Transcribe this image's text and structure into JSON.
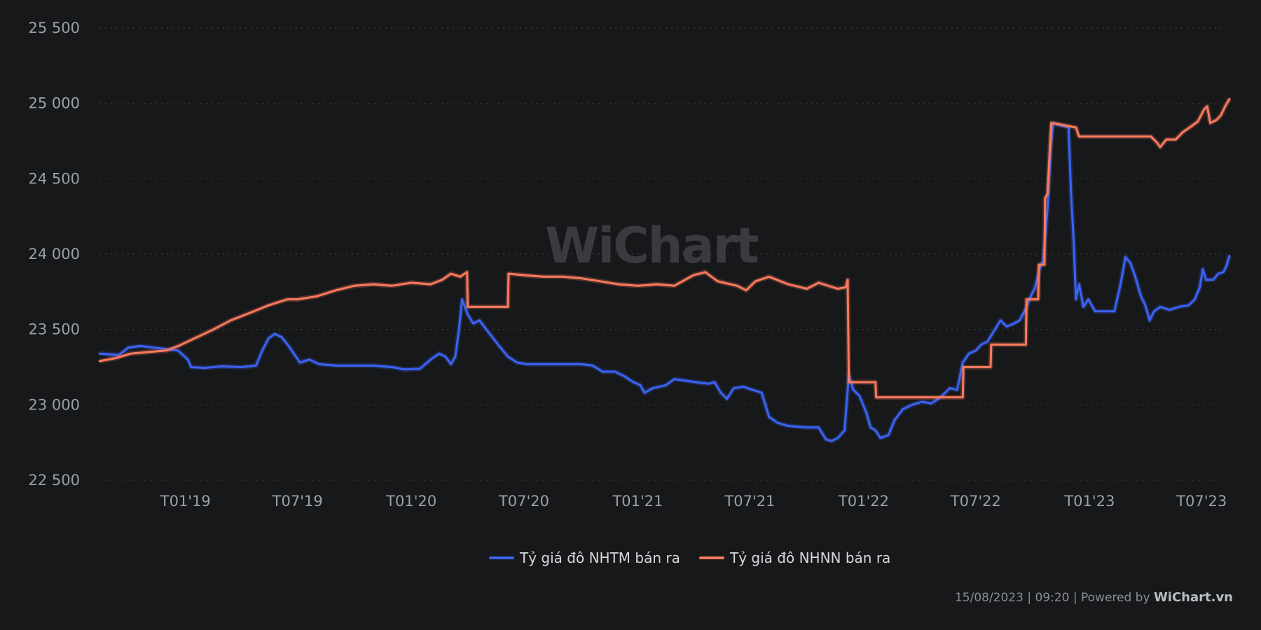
{
  "chart_data": {
    "type": "line",
    "title": "",
    "xlabel": "",
    "ylabel": "",
    "ylim": [
      22500,
      25500
    ],
    "yticks": [
      "25 500",
      "25 000",
      "24 500",
      "24 000",
      "23 500",
      "23 000",
      "22 500"
    ],
    "ytick_values": [
      25500,
      25000,
      24500,
      24000,
      23500,
      23000,
      22500
    ],
    "xticks": [
      "T01'19",
      "T07'19",
      "T01'20",
      "T07'20",
      "T01'21",
      "T07'21",
      "T01'22",
      "T07'22",
      "T01'23",
      "T07'23"
    ],
    "xtick_values": [
      "2019-01-01",
      "2019-07-01",
      "2020-01-01",
      "2020-07-01",
      "2021-01-01",
      "2021-07-01",
      "2022-01-01",
      "2022-07-01",
      "2023-01-01",
      "2023-07-01"
    ],
    "xlim": [
      "2018-08-15",
      "2023-08-15"
    ],
    "grid": true,
    "legend_position": "bottom-center",
    "series": [
      {
        "name": "Tỷ giá đô NHTM bán ra",
        "color": "#3b63f5",
        "points": [
          [
            "2018-08-15",
            23340
          ],
          [
            "2018-09-15",
            23330
          ],
          [
            "2018-10-01",
            23380
          ],
          [
            "2018-10-20",
            23390
          ],
          [
            "2018-11-10",
            23380
          ],
          [
            "2018-12-01",
            23370
          ],
          [
            "2018-12-20",
            23360
          ],
          [
            "2019-01-05",
            23300
          ],
          [
            "2019-01-10",
            23250
          ],
          [
            "2019-02-01",
            23245
          ],
          [
            "2019-03-01",
            23255
          ],
          [
            "2019-04-01",
            23250
          ],
          [
            "2019-04-25",
            23260
          ],
          [
            "2019-05-05",
            23360
          ],
          [
            "2019-05-15",
            23440
          ],
          [
            "2019-05-25",
            23470
          ],
          [
            "2019-06-05",
            23450
          ],
          [
            "2019-06-15",
            23400
          ],
          [
            "2019-06-25",
            23340
          ],
          [
            "2019-07-05",
            23280
          ],
          [
            "2019-07-20",
            23300
          ],
          [
            "2019-08-05",
            23270
          ],
          [
            "2019-09-01",
            23260
          ],
          [
            "2019-10-01",
            23260
          ],
          [
            "2019-11-01",
            23260
          ],
          [
            "2019-12-01",
            23250
          ],
          [
            "2019-12-20",
            23235
          ],
          [
            "2020-01-15",
            23240
          ],
          [
            "2020-02-01",
            23300
          ],
          [
            "2020-02-15",
            23340
          ],
          [
            "2020-02-25",
            23320
          ],
          [
            "2020-03-05",
            23270
          ],
          [
            "2020-03-12",
            23320
          ],
          [
            "2020-03-18",
            23500
          ],
          [
            "2020-03-23",
            23700
          ],
          [
            "2020-04-01",
            23600
          ],
          [
            "2020-04-10",
            23540
          ],
          [
            "2020-04-20",
            23560
          ],
          [
            "2020-05-05",
            23480
          ],
          [
            "2020-05-20",
            23400
          ],
          [
            "2020-06-05",
            23320
          ],
          [
            "2020-06-20",
            23280
          ],
          [
            "2020-07-05",
            23270
          ],
          [
            "2020-08-01",
            23270
          ],
          [
            "2020-09-01",
            23270
          ],
          [
            "2020-10-01",
            23270
          ],
          [
            "2020-10-20",
            23260
          ],
          [
            "2020-11-05",
            23220
          ],
          [
            "2020-11-25",
            23220
          ],
          [
            "2020-12-10",
            23190
          ],
          [
            "2020-12-25",
            23150
          ],
          [
            "2021-01-05",
            23130
          ],
          [
            "2021-01-12",
            23080
          ],
          [
            "2021-01-25",
            23110
          ],
          [
            "2021-02-15",
            23130
          ],
          [
            "2021-03-01",
            23170
          ],
          [
            "2021-03-20",
            23160
          ],
          [
            "2021-04-05",
            23150
          ],
          [
            "2021-04-25",
            23140
          ],
          [
            "2021-05-05",
            23150
          ],
          [
            "2021-05-15",
            23080
          ],
          [
            "2021-05-25",
            23040
          ],
          [
            "2021-06-05",
            23110
          ],
          [
            "2021-06-20",
            23120
          ],
          [
            "2021-07-05",
            23100
          ],
          [
            "2021-07-20",
            23080
          ],
          [
            "2021-08-01",
            22920
          ],
          [
            "2021-08-15",
            22880
          ],
          [
            "2021-09-01",
            22860
          ],
          [
            "2021-10-01",
            22850
          ],
          [
            "2021-10-20",
            22850
          ],
          [
            "2021-11-01",
            22770
          ],
          [
            "2021-11-10",
            22760
          ],
          [
            "2021-11-20",
            22780
          ],
          [
            "2021-12-01",
            22830
          ],
          [
            "2021-12-08",
            23200
          ],
          [
            "2021-12-15",
            23100
          ],
          [
            "2021-12-25",
            23060
          ],
          [
            "2022-01-05",
            22950
          ],
          [
            "2022-01-12",
            22850
          ],
          [
            "2022-01-20",
            22830
          ],
          [
            "2022-01-28",
            22780
          ],
          [
            "2022-02-10",
            22800
          ],
          [
            "2022-02-20",
            22900
          ],
          [
            "2022-03-05",
            22970
          ],
          [
            "2022-03-20",
            23000
          ],
          [
            "2022-04-05",
            23020
          ],
          [
            "2022-04-20",
            23010
          ],
          [
            "2022-05-05",
            23050
          ],
          [
            "2022-05-20",
            23110
          ],
          [
            "2022-06-01",
            23100
          ],
          [
            "2022-06-10",
            23280
          ],
          [
            "2022-06-20",
            23340
          ],
          [
            "2022-07-01",
            23360
          ],
          [
            "2022-07-10",
            23400
          ],
          [
            "2022-07-20",
            23420
          ],
          [
            "2022-08-01",
            23500
          ],
          [
            "2022-08-10",
            23560
          ],
          [
            "2022-08-20",
            23520
          ],
          [
            "2022-09-01",
            23540
          ],
          [
            "2022-09-10",
            23560
          ],
          [
            "2022-09-20",
            23640
          ],
          [
            "2022-09-28",
            23720
          ],
          [
            "2022-10-05",
            23780
          ],
          [
            "2022-10-12",
            23900
          ],
          [
            "2022-10-18",
            23960
          ],
          [
            "2022-10-25",
            24300
          ],
          [
            "2022-10-30",
            24700
          ],
          [
            "2022-11-03",
            24870
          ],
          [
            "2022-11-10",
            24860
          ],
          [
            "2022-11-20",
            24850
          ],
          [
            "2022-11-28",
            24840
          ],
          [
            "2022-12-02",
            24400
          ],
          [
            "2022-12-06",
            24100
          ],
          [
            "2022-12-10",
            23700
          ],
          [
            "2022-12-15",
            23800
          ],
          [
            "2022-12-22",
            23650
          ],
          [
            "2022-12-30",
            23700
          ],
          [
            "2023-01-10",
            23620
          ],
          [
            "2023-01-25",
            23620
          ],
          [
            "2023-02-10",
            23620
          ],
          [
            "2023-02-20",
            23800
          ],
          [
            "2023-02-28",
            23980
          ],
          [
            "2023-03-08",
            23940
          ],
          [
            "2023-03-15",
            23860
          ],
          [
            "2023-03-25",
            23720
          ],
          [
            "2023-04-01",
            23660
          ],
          [
            "2023-04-08",
            23560
          ],
          [
            "2023-04-15",
            23620
          ],
          [
            "2023-04-25",
            23650
          ],
          [
            "2023-05-10",
            23630
          ],
          [
            "2023-05-25",
            23650
          ],
          [
            "2023-06-10",
            23660
          ],
          [
            "2023-06-20",
            23700
          ],
          [
            "2023-06-28",
            23780
          ],
          [
            "2023-07-03",
            23900
          ],
          [
            "2023-07-08",
            23830
          ],
          [
            "2023-07-20",
            23830
          ],
          [
            "2023-07-28",
            23870
          ],
          [
            "2023-08-05",
            23880
          ],
          [
            "2023-08-10",
            23920
          ],
          [
            "2023-08-15",
            23990
          ]
        ]
      },
      {
        "name": "Tỷ giá đô NHNN bán ra",
        "color": "#fb7a5c",
        "points": [
          [
            "2018-08-15",
            23290
          ],
          [
            "2018-09-10",
            23310
          ],
          [
            "2018-10-05",
            23340
          ],
          [
            "2018-11-01",
            23350
          ],
          [
            "2018-12-01",
            23360
          ],
          [
            "2018-12-20",
            23390
          ],
          [
            "2019-01-15",
            23440
          ],
          [
            "2019-02-15",
            23500
          ],
          [
            "2019-03-15",
            23560
          ],
          [
            "2019-04-15",
            23610
          ],
          [
            "2019-05-15",
            23660
          ],
          [
            "2019-06-15",
            23700
          ],
          [
            "2019-07-01",
            23700
          ],
          [
            "2019-08-01",
            23720
          ],
          [
            "2019-09-01",
            23760
          ],
          [
            "2019-10-01",
            23790
          ],
          [
            "2019-11-01",
            23800
          ],
          [
            "2019-12-01",
            23790
          ],
          [
            "2020-01-01",
            23810
          ],
          [
            "2020-02-01",
            23800
          ],
          [
            "2020-02-20",
            23830
          ],
          [
            "2020-03-05",
            23870
          ],
          [
            "2020-03-20",
            23850
          ],
          [
            "2020-03-31",
            23880
          ],
          [
            "2020-04-01",
            23650
          ],
          [
            "2020-05-01",
            23650
          ],
          [
            "2020-06-01",
            23650
          ],
          [
            "2020-06-05",
            23650
          ],
          [
            "2020-06-06",
            23870
          ],
          [
            "2020-07-01",
            23860
          ],
          [
            "2020-08-01",
            23850
          ],
          [
            "2020-09-01",
            23850
          ],
          [
            "2020-10-01",
            23840
          ],
          [
            "2020-11-01",
            23820
          ],
          [
            "2020-12-01",
            23800
          ],
          [
            "2021-01-01",
            23790
          ],
          [
            "2021-02-01",
            23800
          ],
          [
            "2021-03-01",
            23790
          ],
          [
            "2021-04-01",
            23860
          ],
          [
            "2021-04-20",
            23880
          ],
          [
            "2021-05-10",
            23820
          ],
          [
            "2021-06-10",
            23790
          ],
          [
            "2021-06-25",
            23760
          ],
          [
            "2021-07-10",
            23820
          ],
          [
            "2021-08-01",
            23850
          ],
          [
            "2021-09-01",
            23800
          ],
          [
            "2021-10-01",
            23770
          ],
          [
            "2021-10-20",
            23810
          ],
          [
            "2021-11-20",
            23770
          ],
          [
            "2021-12-03",
            23780
          ],
          [
            "2021-12-06",
            23830
          ],
          [
            "2021-12-08",
            23150
          ],
          [
            "2022-01-20",
            23150
          ],
          [
            "2022-01-21",
            23050
          ],
          [
            "2022-03-01",
            23050
          ],
          [
            "2022-04-01",
            23050
          ],
          [
            "2022-05-01",
            23050
          ],
          [
            "2022-06-10",
            23050
          ],
          [
            "2022-06-11",
            23250
          ],
          [
            "2022-07-25",
            23250
          ],
          [
            "2022-07-26",
            23400
          ],
          [
            "2022-09-20",
            23400
          ],
          [
            "2022-09-21",
            23700
          ],
          [
            "2022-10-10",
            23700
          ],
          [
            "2022-10-11",
            23930
          ],
          [
            "2022-10-20",
            23930
          ],
          [
            "2022-10-21",
            24370
          ],
          [
            "2022-10-25",
            24400
          ],
          [
            "2022-10-31",
            24870
          ],
          [
            "2022-11-15",
            24860
          ],
          [
            "2022-12-10",
            24840
          ],
          [
            "2022-12-15",
            24780
          ],
          [
            "2023-01-15",
            24780
          ],
          [
            "2023-02-15",
            24780
          ],
          [
            "2023-03-15",
            24780
          ],
          [
            "2023-04-10",
            24780
          ],
          [
            "2023-04-20",
            24740
          ],
          [
            "2023-04-25",
            24710
          ],
          [
            "2023-05-05",
            24760
          ],
          [
            "2023-05-20",
            24760
          ],
          [
            "2023-06-01",
            24810
          ],
          [
            "2023-06-15",
            24850
          ],
          [
            "2023-06-25",
            24880
          ],
          [
            "2023-07-05",
            24960
          ],
          [
            "2023-07-10",
            24980
          ],
          [
            "2023-07-15",
            24870
          ],
          [
            "2023-07-25",
            24890
          ],
          [
            "2023-08-01",
            24920
          ],
          [
            "2023-08-08",
            24980
          ],
          [
            "2023-08-15",
            25030
          ]
        ]
      }
    ]
  },
  "watermark": "WiChart",
  "footer": {
    "timestamp": "15/08/2023 | 09:20 | Powered by ",
    "brand": "WiChart.vn"
  }
}
